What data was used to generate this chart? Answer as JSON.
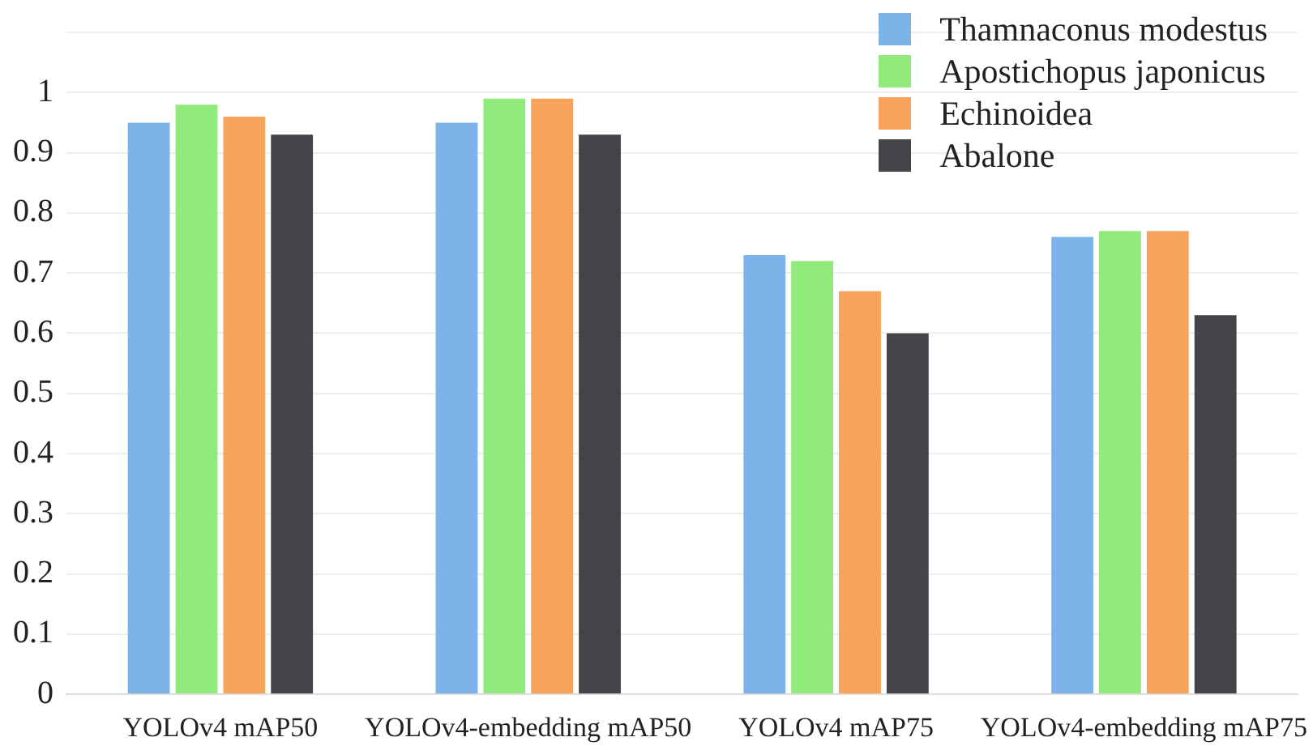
{
  "chart_data": {
    "type": "bar",
    "categories": [
      "YOLOv4 mAP50",
      "YOLOv4-embedding mAP50",
      "YOLOv4 mAP75",
      "YOLOv4-embedding mAP75"
    ],
    "series": [
      {
        "name": "Thamnaconus modestus",
        "color": "#7cb4ea",
        "values": [
          0.95,
          0.95,
          0.73,
          0.76
        ]
      },
      {
        "name": "Apostichopus japonicus",
        "color": "#90eb7c",
        "values": [
          0.98,
          0.99,
          0.72,
          0.77
        ]
      },
      {
        "name": "Echinoidea",
        "color": "#f6a35c",
        "values": [
          0.96,
          0.99,
          0.67,
          0.77
        ]
      },
      {
        "name": "Abalone",
        "color": "#434348",
        "values": [
          0.93,
          0.93,
          0.6,
          0.63
        ]
      }
    ],
    "ylim": [
      0,
      1.1
    ],
    "yticks": [
      0,
      0.1,
      0.2,
      0.3,
      0.4,
      0.5,
      0.6,
      0.7,
      0.8,
      0.9,
      1,
      {
        "value": 1.1,
        "label": null
      }
    ],
    "grid": "y",
    "legend": "top right"
  }
}
